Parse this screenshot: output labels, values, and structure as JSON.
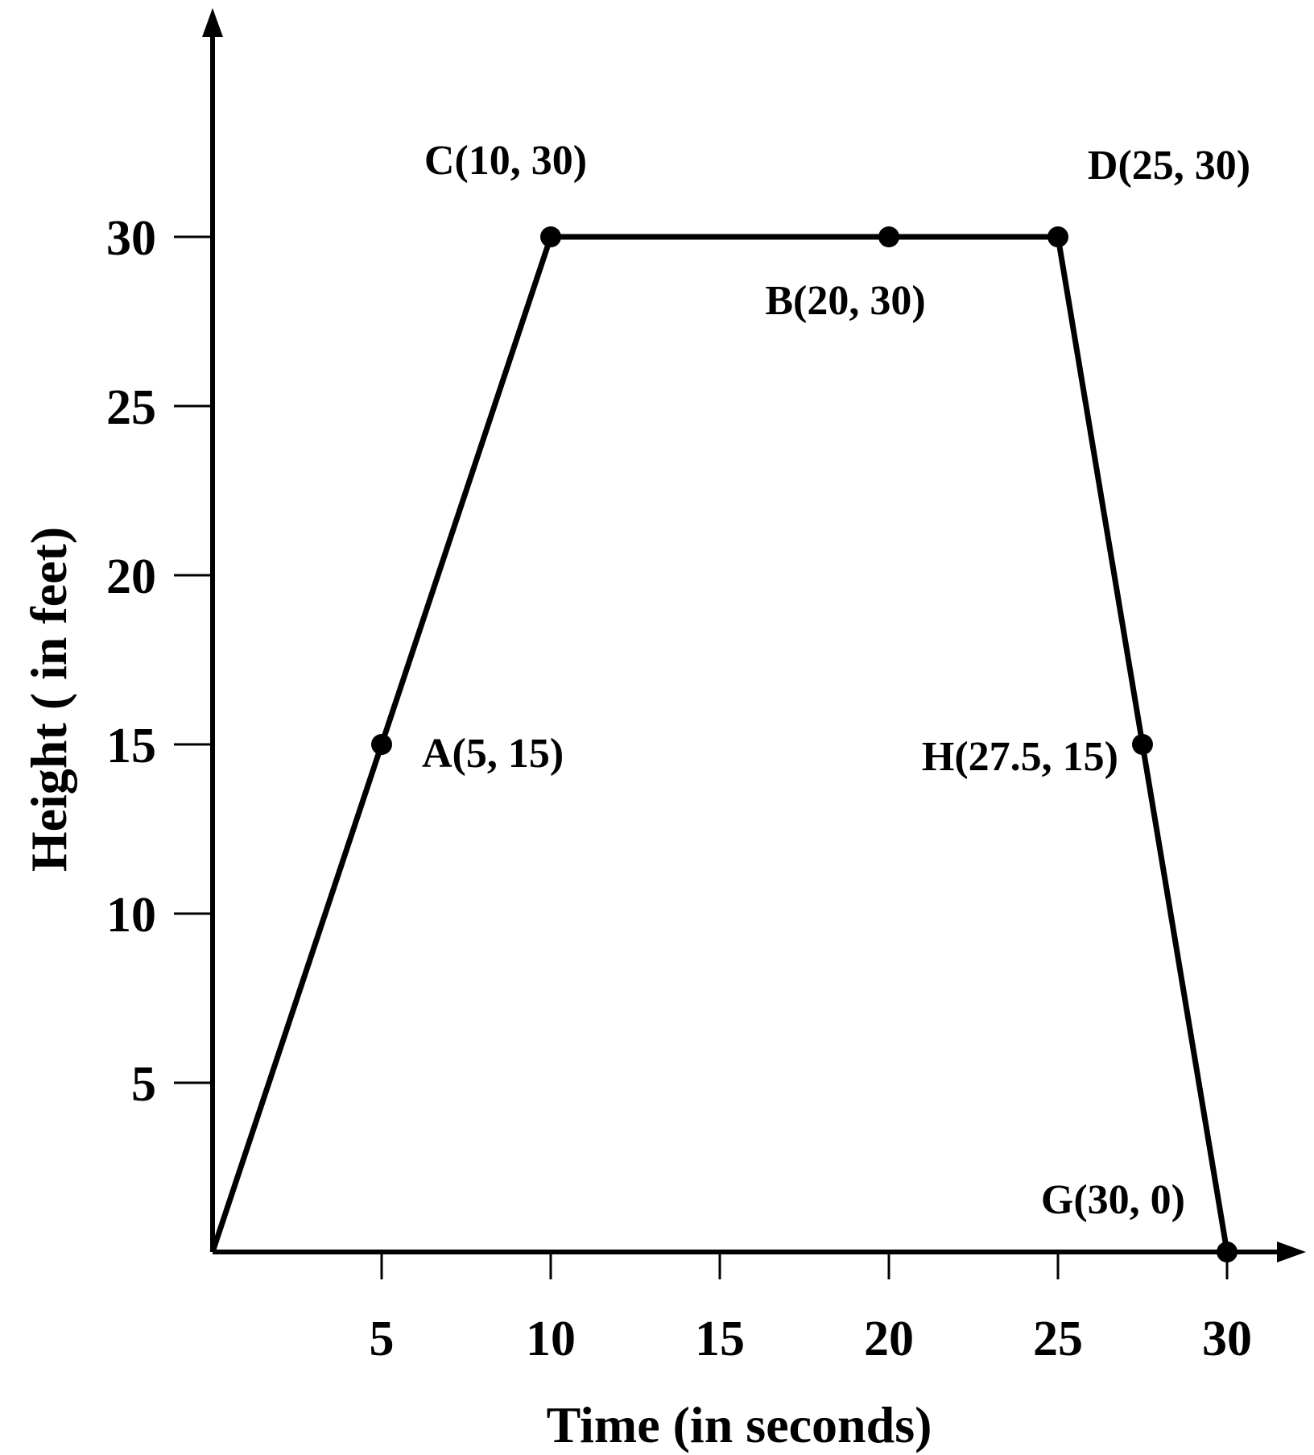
{
  "chart_data": {
    "type": "line",
    "title": "",
    "xlabel": "Time (in seconds)",
    "ylabel": "Height ( in feet)",
    "xlim": [
      0,
      30
    ],
    "ylim": [
      0,
      30
    ],
    "x_ticks": [
      5,
      10,
      15,
      20,
      25,
      30
    ],
    "y_ticks": [
      5,
      10,
      15,
      20,
      25,
      30
    ],
    "grid": false,
    "legend": "none",
    "series": [
      {
        "x": [
          0,
          10,
          25,
          30
        ],
        "y": [
          0,
          30,
          30,
          0
        ]
      }
    ],
    "points": [
      {
        "label": "A(5, 15)",
        "x": 5,
        "y": 15
      },
      {
        "label": "C(10, 30)",
        "x": 10,
        "y": 30
      },
      {
        "label": "B(20, 30)",
        "x": 20,
        "y": 30
      },
      {
        "label": "D(25, 30)",
        "x": 25,
        "y": 30
      },
      {
        "label": "H(27.5, 15)",
        "x": 27.5,
        "y": 15
      },
      {
        "label": "G(30, 0)",
        "x": 30,
        "y": 0
      }
    ]
  }
}
